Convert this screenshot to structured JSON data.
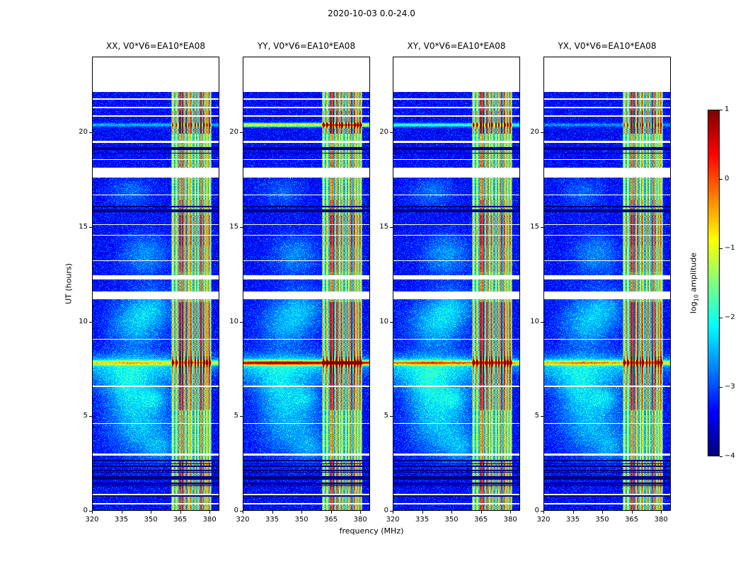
{
  "chart_data": {
    "type": "heatmap",
    "title": "2020-10-03 0.0-24.0",
    "xlabel": "frequency (MHz)",
    "ylabel": "UT (hours)",
    "panels": [
      {
        "label": "XX, V0*V6=EA10*EA08"
      },
      {
        "label": "YY, V0*V6=EA10*EA08"
      },
      {
        "label": "XY, V0*V6=EA10*EA08"
      },
      {
        "label": "YX, V0*V6=EA10*EA08"
      }
    ],
    "x_ticks": [
      320,
      335,
      350,
      365,
      380
    ],
    "x_range": [
      320,
      385
    ],
    "y_ticks": [
      0,
      5,
      10,
      15,
      20
    ],
    "y_range": [
      0,
      24
    ],
    "data_time_max": 22.1,
    "colorbar": {
      "label_prefix": "log",
      "label_sub": "10",
      "label_suffix": " amplitude",
      "ticks": [
        1,
        0,
        -1,
        -2,
        -3,
        -4
      ],
      "range": [
        -4,
        1
      ],
      "colormap": "jet"
    },
    "rfi_band": {
      "f0": 360.5,
      "f1": 381.5
    },
    "stripe_seed": 77,
    "noise_seed": 12345,
    "events": [
      {
        "t": 7.78,
        "sigma": 0.12,
        "amps": [
          1.7,
          3.1,
          2.3,
          2.0
        ]
      },
      {
        "t": 7.78,
        "sigma": 0.5,
        "amps": [
          0.5,
          0.6,
          0.5,
          0.5
        ]
      },
      {
        "t": 20.35,
        "sigma": 0.1,
        "amps": [
          0.9,
          2.6,
          1.5,
          0.7
        ]
      }
    ],
    "gaps": [
      [
        0.3,
        0.36
      ],
      [
        0.8,
        0.86
      ],
      [
        2.86,
        3.0
      ],
      [
        4.55,
        4.61
      ],
      [
        6.52,
        6.58
      ],
      [
        9.0,
        9.06
      ],
      [
        11.15,
        11.55
      ],
      [
        12.2,
        12.4
      ],
      [
        13.15,
        13.21
      ],
      [
        14.5,
        14.56
      ],
      [
        15.05,
        15.11
      ],
      [
        16.62,
        16.68
      ],
      [
        17.57,
        18.08
      ],
      [
        18.5,
        18.56
      ],
      [
        19.42,
        19.52
      ],
      [
        20.8,
        20.86
      ],
      [
        21.25,
        21.31
      ],
      [
        21.7,
        21.76
      ]
    ],
    "dark_line_groups": [
      [
        0.5,
        0.75,
        2
      ],
      [
        1.2,
        2.65,
        12
      ],
      [
        15.7,
        16.35,
        6
      ],
      [
        18.8,
        19.35,
        4
      ]
    ],
    "blobs": [
      [
        4.5,
        345,
        1.2,
        12,
        0.9
      ],
      [
        6.2,
        338,
        0.8,
        8,
        0.7
      ],
      [
        9.8,
        342,
        1.0,
        10,
        0.9
      ],
      [
        10.8,
        352,
        0.7,
        8,
        0.6
      ],
      [
        13.5,
        347,
        0.8,
        9,
        0.7
      ],
      [
        16.8,
        340,
        0.6,
        8,
        0.5
      ],
      [
        3.2,
        355,
        0.5,
        6,
        0.5
      ],
      [
        5.9,
        352,
        0.4,
        5,
        0.6
      ],
      [
        7.2,
        340,
        0.6,
        25,
        0.8
      ]
    ],
    "band_levels": [
      [
        0,
        1.2,
        0.75
      ],
      [
        1.2,
        2.6,
        0.85
      ],
      [
        2.6,
        5.3,
        0.55
      ],
      [
        5.3,
        6.5,
        0.8
      ],
      [
        6.5,
        7.5,
        0.9
      ],
      [
        7.5,
        8.1,
        1.0
      ],
      [
        8.1,
        9.0,
        0.85
      ],
      [
        9,
        11,
        0.9
      ],
      [
        11,
        12.6,
        0.6
      ],
      [
        12.6,
        14,
        0.75
      ],
      [
        14,
        15.6,
        0.85
      ],
      [
        15.6,
        16.4,
        0.7
      ],
      [
        16.4,
        17.6,
        0.6
      ],
      [
        17.6,
        19.2,
        0.65
      ],
      [
        19.2,
        19.9,
        0.5
      ],
      [
        19.9,
        21.1,
        0.95
      ],
      [
        21.1,
        22.1,
        0.8
      ]
    ]
  }
}
